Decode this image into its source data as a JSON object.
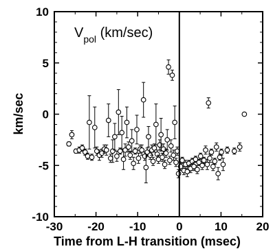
{
  "chart_data": {
    "type": "scatter",
    "title": "",
    "annotation": {
      "main": "V",
      "sub": "pol",
      "suffix": " (km/sec)"
    },
    "xlabel": "Time from L-H transition (msec)",
    "ylabel": "km/sec",
    "xlim": [
      -30,
      20
    ],
    "ylim": [
      -10,
      10
    ],
    "xticks": [
      -30,
      -20,
      -10,
      0,
      10,
      20
    ],
    "yticks": [
      -10,
      -5,
      0,
      5,
      10
    ],
    "xtick_labels": [
      "-30",
      "-20",
      "-10",
      "0",
      "10",
      "20"
    ],
    "ytick_labels": [
      "-10",
      "-5",
      "0",
      "5",
      "10"
    ],
    "reference_line_x": 0,
    "grid": false,
    "marker": "open-circle",
    "color": "#000000",
    "series": [
      {
        "points": [
          {
            "x": -26.5,
            "y": -2.9,
            "err": 0.2
          },
          {
            "x": -25.8,
            "y": -2.0,
            "err": 0.4
          },
          {
            "x": -24.8,
            "y": -3.6,
            "err": 0.2
          },
          {
            "x": -24.0,
            "y": -3.5,
            "err": 0.3
          },
          {
            "x": -23.3,
            "y": -3.3,
            "err": 0.3
          },
          {
            "x": -22.6,
            "y": -3.7,
            "err": 0.3
          },
          {
            "x": -22.0,
            "y": -4.1,
            "err": 0.3
          },
          {
            "x": -21.6,
            "y": -0.8,
            "err": 2.6
          },
          {
            "x": -21.0,
            "y": -4.2,
            "err": 0.3
          },
          {
            "x": -20.3,
            "y": -1.3,
            "err": 2.0
          },
          {
            "x": -19.8,
            "y": -3.6,
            "err": 0.4
          },
          {
            "x": -19.2,
            "y": -4.0,
            "err": 0.5
          },
          {
            "x": -18.6,
            "y": -3.8,
            "err": 0.4
          },
          {
            "x": -18.0,
            "y": -3.4,
            "err": 0.4
          },
          {
            "x": -17.5,
            "y": -3.5,
            "err": 0.5
          },
          {
            "x": -17.0,
            "y": -0.6,
            "err": 1.6
          },
          {
            "x": -16.5,
            "y": -4.3,
            "err": 0.4
          },
          {
            "x": -16.0,
            "y": -3.6,
            "err": 1.1
          },
          {
            "x": -15.5,
            "y": -2.2,
            "err": 1.3
          },
          {
            "x": -15.0,
            "y": -4.1,
            "err": 0.5
          },
          {
            "x": -14.6,
            "y": 0.2,
            "err": 2.2
          },
          {
            "x": -14.2,
            "y": -3.6,
            "err": 0.3
          },
          {
            "x": -13.8,
            "y": -1.8,
            "err": 1.6
          },
          {
            "x": -13.4,
            "y": -4.4,
            "err": 1.0
          },
          {
            "x": -13.0,
            "y": -3.5,
            "err": 0.6
          },
          {
            "x": -12.6,
            "y": -0.8,
            "err": 1.5
          },
          {
            "x": -12.2,
            "y": -3.2,
            "err": 0.5
          },
          {
            "x": -11.8,
            "y": -4.0,
            "err": 0.4
          },
          {
            "x": -11.4,
            "y": -2.6,
            "err": 1.1
          },
          {
            "x": -11.0,
            "y": -4.8,
            "err": 0.6
          },
          {
            "x": -10.6,
            "y": -3.6,
            "err": 0.3
          },
          {
            "x": -10.2,
            "y": -1.5,
            "err": 1.4
          },
          {
            "x": -9.8,
            "y": -4.3,
            "err": 0.5
          },
          {
            "x": -9.4,
            "y": -3.4,
            "err": 0.4
          },
          {
            "x": -9.0,
            "y": -3.5,
            "err": 0.5
          },
          {
            "x": -8.6,
            "y": 1.4,
            "err": 1.7
          },
          {
            "x": -8.3,
            "y": -4.1,
            "err": 0.4
          },
          {
            "x": -8.0,
            "y": -5.2,
            "err": 1.5
          },
          {
            "x": -7.7,
            "y": -3.7,
            "err": 0.4
          },
          {
            "x": -7.4,
            "y": -2.2,
            "err": 1.0
          },
          {
            "x": -7.0,
            "y": -4.0,
            "err": 0.4
          },
          {
            "x": -6.6,
            "y": -3.5,
            "err": 0.5
          },
          {
            "x": -6.3,
            "y": -4.6,
            "err": 0.4
          },
          {
            "x": -6.0,
            "y": -3.3,
            "err": 0.4
          },
          {
            "x": -5.6,
            "y": -1.0,
            "err": 2.0
          },
          {
            "x": -5.3,
            "y": -3.9,
            "err": 0.4
          },
          {
            "x": -5.0,
            "y": -4.4,
            "err": 0.4
          },
          {
            "x": -4.7,
            "y": -3.0,
            "err": 0.5
          },
          {
            "x": -4.4,
            "y": -2.0,
            "err": 1.6
          },
          {
            "x": -4.1,
            "y": -4.2,
            "err": 0.4
          },
          {
            "x": -3.8,
            "y": -3.4,
            "err": 0.5
          },
          {
            "x": -3.5,
            "y": -4.9,
            "err": 0.4
          },
          {
            "x": -3.2,
            "y": -3.8,
            "err": 0.4
          },
          {
            "x": -2.9,
            "y": -2.5,
            "err": 1.0
          },
          {
            "x": -2.6,
            "y": 4.6,
            "err": 0.7
          },
          {
            "x": -2.3,
            "y": -4.5,
            "err": 0.4
          },
          {
            "x": -2.0,
            "y": -3.1,
            "err": 0.6
          },
          {
            "x": -1.7,
            "y": 3.8,
            "err": 0.5
          },
          {
            "x": -1.4,
            "y": -4.0,
            "err": 0.5
          },
          {
            "x": -1.1,
            "y": -0.8,
            "err": 1.6
          },
          {
            "x": -0.8,
            "y": -4.7,
            "err": 0.4
          },
          {
            "x": -0.5,
            "y": -3.6,
            "err": 0.4
          },
          {
            "x": -0.2,
            "y": -5.8,
            "err": 0.4
          },
          {
            "x": 0.3,
            "y": -5.1,
            "err": 0.4
          },
          {
            "x": 0.7,
            "y": -4.5,
            "err": 0.3
          },
          {
            "x": 1.1,
            "y": -5.5,
            "err": 0.4
          },
          {
            "x": 1.5,
            "y": -4.9,
            "err": 0.4
          },
          {
            "x": 1.9,
            "y": -5.6,
            "err": 0.5
          },
          {
            "x": 2.3,
            "y": -4.8,
            "err": 0.3
          },
          {
            "x": 2.7,
            "y": -5.3,
            "err": 0.4
          },
          {
            "x": 3.1,
            "y": -4.6,
            "err": 0.3
          },
          {
            "x": 3.5,
            "y": -5.1,
            "err": 0.4
          },
          {
            "x": 3.9,
            "y": -4.4,
            "err": 0.3
          },
          {
            "x": 4.3,
            "y": -5.4,
            "err": 0.4
          },
          {
            "x": 4.7,
            "y": -4.7,
            "err": 0.3
          },
          {
            "x": 5.1,
            "y": -4.1,
            "err": 0.3
          },
          {
            "x": 5.5,
            "y": -5.0,
            "err": 0.4
          },
          {
            "x": 5.9,
            "y": -4.5,
            "err": 0.3
          },
          {
            "x": 6.3,
            "y": -3.5,
            "err": 0.4
          },
          {
            "x": 6.7,
            "y": -4.9,
            "err": 0.5
          },
          {
            "x": 7.0,
            "y": 1.1,
            "err": 0.5
          },
          {
            "x": 7.3,
            "y": -4.3,
            "err": 0.4
          },
          {
            "x": 7.7,
            "y": -3.7,
            "err": 0.3
          },
          {
            "x": 8.1,
            "y": -5.1,
            "err": 0.4
          },
          {
            "x": 8.5,
            "y": -4.6,
            "err": 0.3
          },
          {
            "x": 8.9,
            "y": -3.2,
            "err": 0.4
          },
          {
            "x": 9.3,
            "y": -5.8,
            "err": 0.6
          },
          {
            "x": 9.7,
            "y": -4.2,
            "err": 0.3
          },
          {
            "x": 10.1,
            "y": -3.7,
            "err": 0.3
          },
          {
            "x": 10.5,
            "y": -4.9,
            "err": 0.6
          },
          {
            "x": 11.5,
            "y": -3.5,
            "err": 0.3
          },
          {
            "x": 13.2,
            "y": -3.6,
            "err": 0.3
          },
          {
            "x": 14.5,
            "y": -3.2,
            "err": 0.4
          },
          {
            "x": 15.6,
            "y": 0.0,
            "err": 0.1
          }
        ]
      }
    ]
  }
}
